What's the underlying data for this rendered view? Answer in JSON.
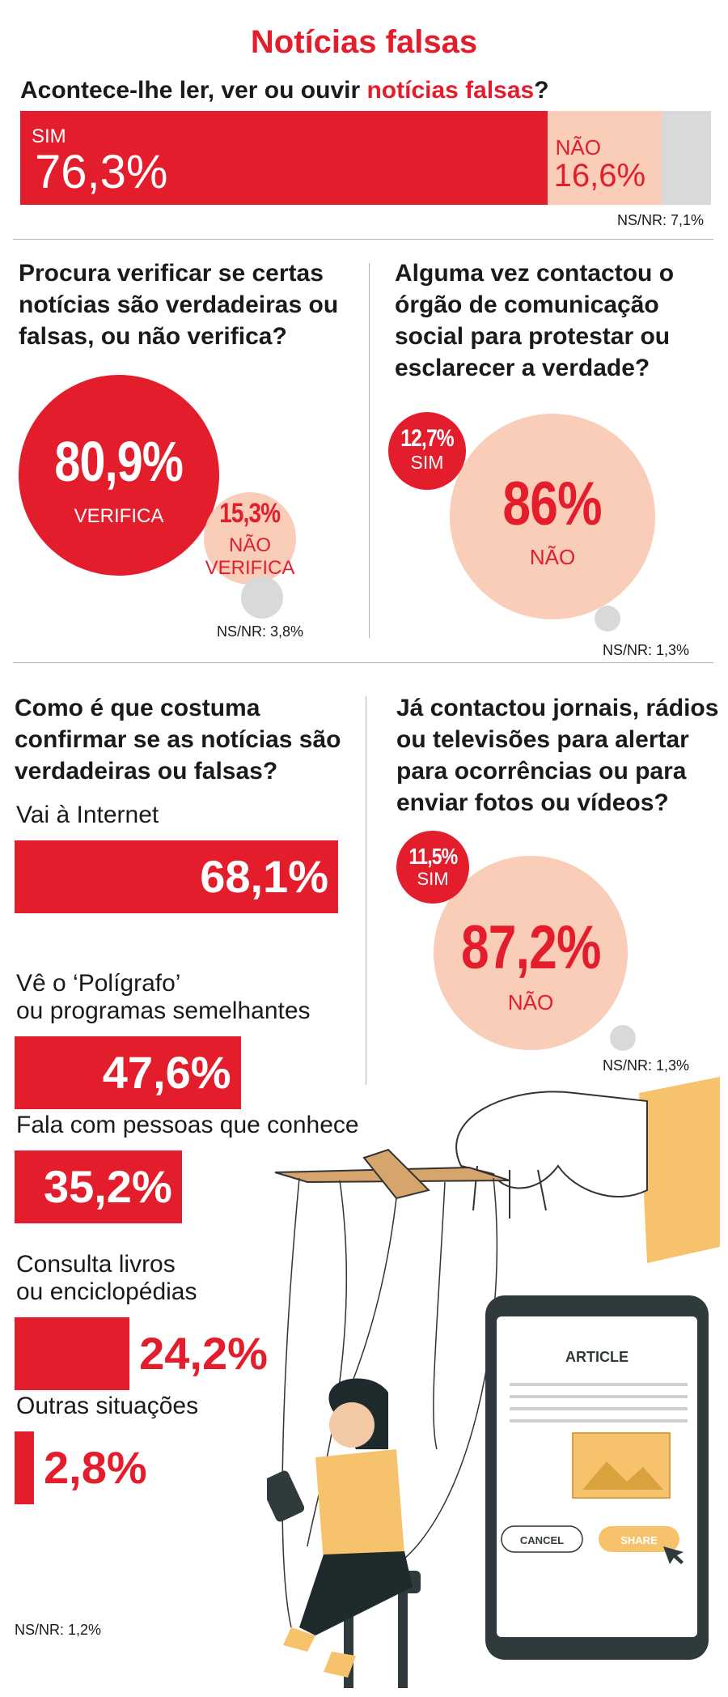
{
  "title": "Notícias falsas",
  "colors": {
    "accent": "#e31d2b",
    "light": "#f9cdb8",
    "grey": "#d9d9d9"
  },
  "q1": {
    "question_prefix": "Acontece-lhe ler, ver ou ouvir ",
    "question_highlight": "notícias falsas",
    "question_suffix": "?",
    "sim_label": "SIM",
    "sim_value": "76,3%",
    "nao_label": "NÃO",
    "nao_value": "16,6%",
    "nsnr": "NS/NR: 7,1%"
  },
  "q2": {
    "question": "Procura verificar se certas notícias são verdadeiras ou falsas, ou não verifica?",
    "big_value": "80,9%",
    "big_label": "VERIFICA",
    "small_value": "15,3%",
    "small_label_1": "NÃO",
    "small_label_2": "VERIFICA",
    "nsnr": "NS/NR: 3,8%"
  },
  "q3": {
    "question": "Alguma vez contactou o órgão de comunicação social para protestar ou esclarecer a verdade?",
    "small_value": "12,7%",
    "small_label": "SIM",
    "big_value": "86%",
    "big_label": "NÃO",
    "nsnr": "NS/NR: 1,3%"
  },
  "q4": {
    "question": "Como é que costuma confirmar se as notícias são verdadeiras ou falsas?",
    "nsnr": "NS/NR: 1,2%"
  },
  "q5": {
    "question": "Já contactou jornais, rádios ou televisões para alertar para ocorrências ou para enviar fotos ou vídeos?",
    "small_value": "11,5%",
    "small_label": "SIM",
    "big_value": "87,2%",
    "big_label": "NÃO",
    "nsnr": "NS/NR: 1,3%"
  },
  "illustration": {
    "article_label": "ARTICLE",
    "cancel_label": "CANCEL",
    "share_label": "SHARE"
  },
  "chart_data": [
    {
      "type": "bar",
      "title": "Acontece-lhe ler, ver ou ouvir notícias falsas?",
      "categories": [
        "SIM",
        "NÃO",
        "NS/NR"
      ],
      "values": [
        76.3,
        16.6,
        7.1
      ],
      "unit": "%"
    },
    {
      "type": "pie",
      "title": "Procura verificar se certas notícias são verdadeiras ou falsas, ou não verifica?",
      "categories": [
        "VERIFICA",
        "NÃO VERIFICA",
        "NS/NR"
      ],
      "values": [
        80.9,
        15.3,
        3.8
      ],
      "unit": "%"
    },
    {
      "type": "pie",
      "title": "Alguma vez contactou o órgão de comunicação social para protestar ou esclarecer a verdade?",
      "categories": [
        "SIM",
        "NÃO",
        "NS/NR"
      ],
      "values": [
        12.7,
        86,
        1.3
      ],
      "unit": "%"
    },
    {
      "type": "bar",
      "title": "Como é que costuma confirmar se as notícias são verdadeiras ou falsas?",
      "categories": [
        "Vai à Internet",
        "Vê o ‘Polígrafo’ ou programas semelhantes",
        "Fala com pessoas que conhece",
        "Consulta livros ou enciclopédias",
        "Outras situações",
        "NS/NR"
      ],
      "values": [
        68.1,
        47.6,
        35.2,
        24.2,
        2.8,
        1.2
      ],
      "labels": [
        "68,1%",
        "47,6%",
        "35,2%",
        "24,2%",
        "2,8%",
        "1,2%"
      ],
      "label_lines": [
        [
          "Vai à Internet"
        ],
        [
          "Vê o ‘Polígrafo’",
          "ou programas semelhantes"
        ],
        [
          "Fala com pessoas que conhece"
        ],
        [
          "Consulta livros",
          "ou enciclopédias"
        ],
        [
          "Outras situações"
        ]
      ],
      "unit": "%"
    },
    {
      "type": "pie",
      "title": "Já contactou jornais, rádios ou televisões para alertar para ocorrências ou para enviar fotos ou vídeos?",
      "categories": [
        "SIM",
        "NÃO",
        "NS/NR"
      ],
      "values": [
        11.5,
        87.2,
        1.3
      ],
      "unit": "%"
    }
  ]
}
